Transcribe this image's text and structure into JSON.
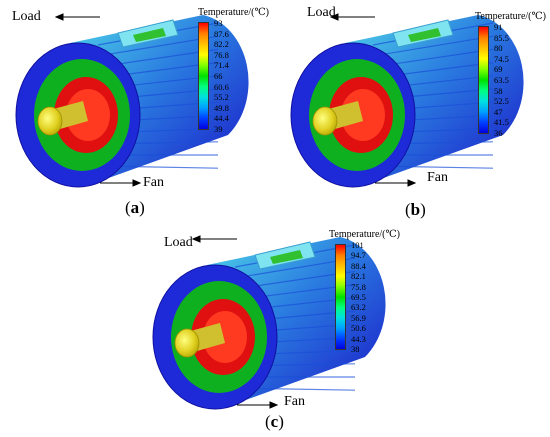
{
  "panels": [
    {
      "id": "a",
      "caption": "a",
      "load_label": "Load",
      "fan_label": "Fan",
      "colorbar_title": "Temperature/(℃)",
      "ticks": [
        "93",
        "87.6",
        "82.2",
        "76.8",
        "71.4",
        "66",
        "60.6",
        "55.2",
        "49.8",
        "44.4",
        "39"
      ],
      "temperature_range": [
        39,
        93
      ]
    },
    {
      "id": "b",
      "caption": "b",
      "load_label": "Load",
      "fan_label": "Fan",
      "colorbar_title": "Temperature/(℃)",
      "ticks": [
        "91",
        "85.5",
        "80",
        "74.5",
        "69",
        "63.5",
        "58",
        "52.5",
        "47",
        "41.5",
        "36"
      ],
      "temperature_range": [
        36,
        91
      ]
    },
    {
      "id": "c",
      "caption": "c",
      "load_label": "Load",
      "fan_label": "Fan",
      "colorbar_title": "Temperature/(℃)",
      "ticks": [
        "101",
        "94.7",
        "88.4",
        "82.1",
        "75.8",
        "69.5",
        "63.2",
        "56.9",
        "50.6",
        "44.3",
        "38"
      ],
      "temperature_range": [
        38,
        101
      ]
    }
  ],
  "colormap": [
    "#ff0000",
    "#ff8000",
    "#ffc000",
    "#ffff00",
    "#80ff00",
    "#00e000",
    "#00ff80",
    "#00e0e0",
    "#00a0ff",
    "#0040ff",
    "#0000e0"
  ]
}
